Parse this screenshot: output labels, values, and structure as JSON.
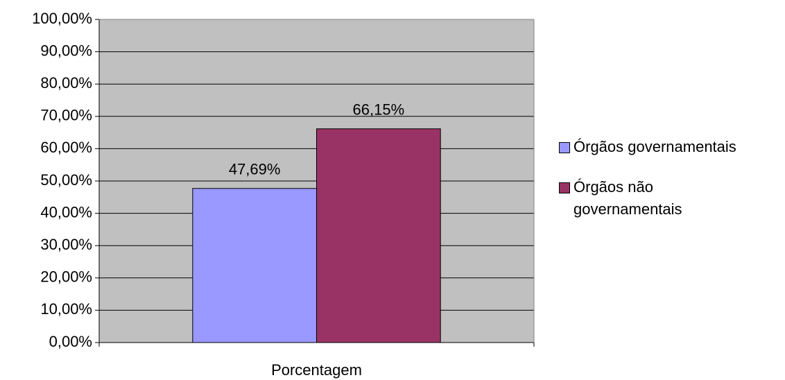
{
  "chart_data": {
    "type": "bar",
    "categories": [
      "Porcentagem"
    ],
    "series": [
      {
        "name": "Órgãos governamentais",
        "color": "#9999ff",
        "values": [
          47.69
        ],
        "value_labels": [
          "47,69%"
        ]
      },
      {
        "name": "Órgãos não governamentais",
        "color": "#993366",
        "values": [
          66.15
        ],
        "value_labels": [
          "66,15%"
        ]
      }
    ],
    "ylim": [
      0,
      100
    ],
    "yticks": [
      {
        "value": 0,
        "label": "0,00%"
      },
      {
        "value": 10,
        "label": "10,00%"
      },
      {
        "value": 20,
        "label": "20,00%"
      },
      {
        "value": 30,
        "label": "30,00%"
      },
      {
        "value": 40,
        "label": "40,00%"
      },
      {
        "value": 50,
        "label": "50,00%"
      },
      {
        "value": 60,
        "label": "60,00%"
      },
      {
        "value": 70,
        "label": "70,00%"
      },
      {
        "value": 80,
        "label": "80,00%"
      },
      {
        "value": 90,
        "label": "90,00%"
      },
      {
        "value": 100,
        "label": "100,00%"
      }
    ],
    "grid": true,
    "legend": "right"
  }
}
